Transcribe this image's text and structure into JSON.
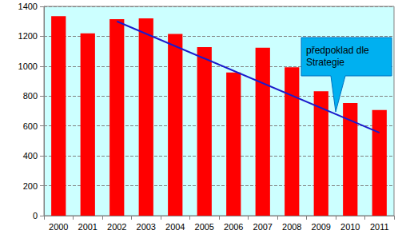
{
  "chart_data": {
    "type": "bar",
    "categories": [
      "2000",
      "2001",
      "2002",
      "2003",
      "2004",
      "2005",
      "2006",
      "2007",
      "2008",
      "2009",
      "2010",
      "2011"
    ],
    "series": [
      {
        "type": "bar",
        "color": "#ff0000",
        "values": [
          1335,
          1220,
          1315,
          1320,
          1215,
          1127,
          958,
          1123,
          992,
          832,
          753,
          707
        ]
      },
      {
        "type": "line",
        "name": "předpoklad dle Strategie",
        "color": "#1a1acc",
        "line_style": "solid",
        "values": [
          null,
          null,
          1300,
          null,
          null,
          null,
          null,
          null,
          null,
          null,
          null,
          555
        ]
      }
    ],
    "ylim": [
      0,
      1400
    ],
    "yticks": [
      0,
      200,
      400,
      600,
      800,
      1000,
      1200,
      1400
    ],
    "grid": true
  }
}
